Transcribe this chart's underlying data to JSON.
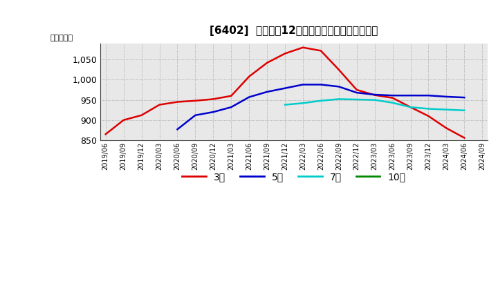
{
  "title": "[6402]  経常利益12か月移動合計の平均値の推移",
  "ylabel": "（百万円）",
  "ylim": [
    850,
    1090
  ],
  "yticks": [
    850,
    900,
    950,
    1000,
    1050
  ],
  "background_color": "#ffffff",
  "grid_color": "#bbbbbb",
  "series": {
    "3年": {
      "color": "#dd0000",
      "data": [
        [
          "2019/06",
          865
        ],
        [
          "2019/09",
          900
        ],
        [
          "2019/12",
          912
        ],
        [
          "2020/03",
          938
        ],
        [
          "2020/06",
          945
        ],
        [
          "2020/09",
          948
        ],
        [
          "2020/12",
          952
        ],
        [
          "2021/03",
          960
        ],
        [
          "2021/06",
          1008
        ],
        [
          "2021/09",
          1042
        ],
        [
          "2021/12",
          1065
        ],
        [
          "2022/03",
          1080
        ],
        [
          "2022/06",
          1072
        ],
        [
          "2022/09",
          1025
        ],
        [
          "2022/12",
          975
        ],
        [
          "2023/03",
          962
        ],
        [
          "2023/06",
          955
        ],
        [
          "2023/09",
          932
        ],
        [
          "2023/12",
          910
        ],
        [
          "2024/03",
          880
        ],
        [
          "2024/06",
          856
        ]
      ]
    },
    "5年": {
      "color": "#0000cc",
      "data": [
        [
          "2020/06",
          877
        ],
        [
          "2020/09",
          912
        ],
        [
          "2020/12",
          920
        ],
        [
          "2021/03",
          932
        ],
        [
          "2021/06",
          957
        ],
        [
          "2021/09",
          970
        ],
        [
          "2021/12",
          979
        ],
        [
          "2022/03",
          988
        ],
        [
          "2022/06",
          988
        ],
        [
          "2022/09",
          983
        ],
        [
          "2022/12",
          968
        ],
        [
          "2023/03",
          963
        ],
        [
          "2023/06",
          961
        ],
        [
          "2023/09",
          961
        ],
        [
          "2023/12",
          961
        ],
        [
          "2024/03",
          958
        ],
        [
          "2024/06",
          956
        ]
      ]
    },
    "7年": {
      "color": "#00cccc",
      "data": [
        [
          "2021/12",
          938
        ],
        [
          "2022/03",
          942
        ],
        [
          "2022/06",
          948
        ],
        [
          "2022/09",
          952
        ],
        [
          "2022/12",
          951
        ],
        [
          "2023/03",
          950
        ],
        [
          "2023/06",
          943
        ],
        [
          "2023/09",
          932
        ],
        [
          "2023/12",
          928
        ],
        [
          "2024/03",
          926
        ],
        [
          "2024/06",
          924
        ]
      ]
    },
    "10年": {
      "color": "#008800",
      "data": []
    }
  },
  "x_labels": [
    "2019/06",
    "2019/09",
    "2019/12",
    "2020/03",
    "2020/06",
    "2020/09",
    "2020/12",
    "2021/03",
    "2021/06",
    "2021/09",
    "2021/12",
    "2022/03",
    "2022/06",
    "2022/09",
    "2022/12",
    "2023/03",
    "2023/06",
    "2023/09",
    "2023/12",
    "2024/03",
    "2024/06",
    "2024/09"
  ],
  "legend_entries": [
    "3年",
    "5年",
    "7年",
    "10年"
  ],
  "legend_colors": [
    "#dd0000",
    "#0000cc",
    "#00cccc",
    "#008800"
  ]
}
